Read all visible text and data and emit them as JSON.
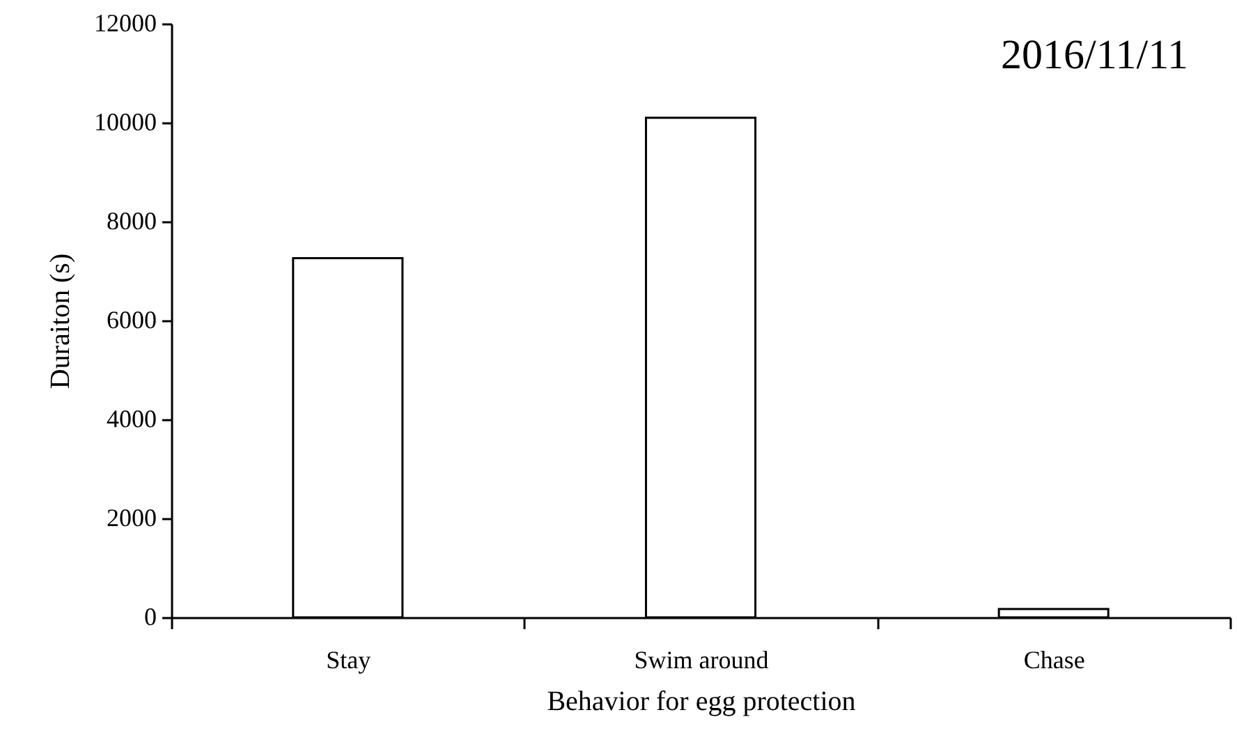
{
  "chart_data": {
    "type": "bar",
    "xlabel": "Behavior for egg protection",
    "ylabel": "Duraiton (s)",
    "categories": [
      "Stay",
      "Swim around",
      "Chase"
    ],
    "values": [
      7260,
      10100,
      170
    ],
    "color": "#ffffff",
    "ylim": [
      0,
      12000
    ],
    "yticks": [
      0,
      2000,
      4000,
      6000,
      8000,
      10000,
      12000
    ],
    "annotations": [
      "2016/11/11"
    ],
    "grid": false
  }
}
